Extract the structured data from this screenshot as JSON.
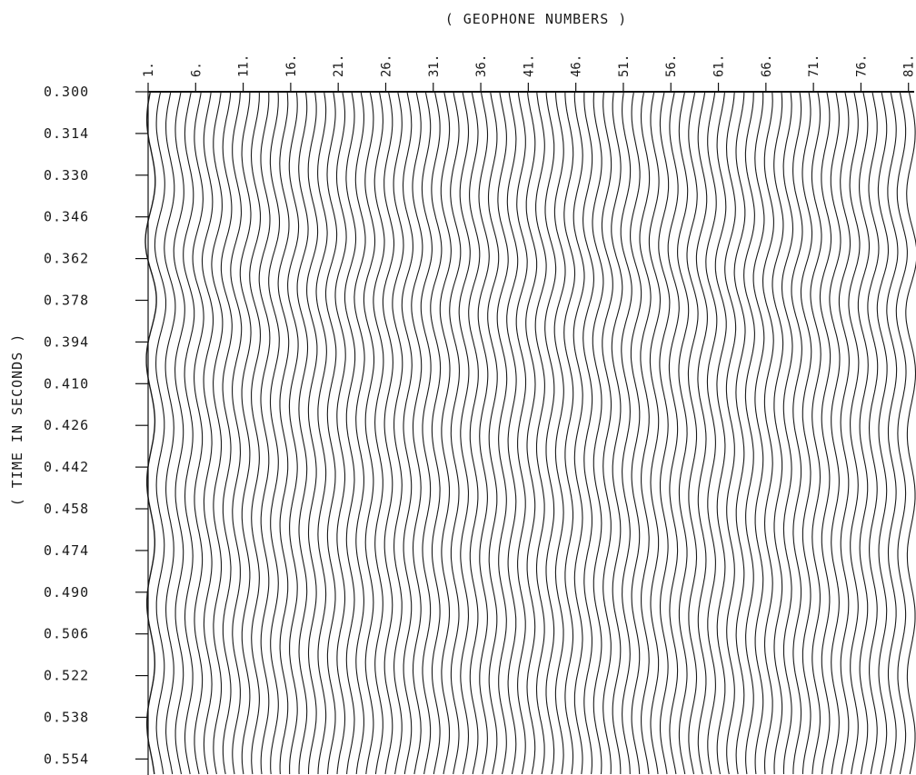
{
  "chart_data": {
    "type": "line",
    "subtype": "seismic-wiggle-traces",
    "xlabel": "( GEOPHONE NUMBERS )",
    "ylabel": "( TIME IN SECONDS )",
    "x_tick_labels": [
      "1.",
      "6.",
      "11.",
      "16.",
      "21.",
      "26.",
      "31.",
      "36.",
      "41.",
      "46.",
      "51.",
      "56.",
      "61.",
      "66.",
      "71.",
      "76.",
      "81."
    ],
    "y_tick_labels": [
      "0.300",
      "0.314",
      "0.330",
      "0.346",
      "0.362",
      "0.378",
      "0.394",
      "0.410",
      "0.426",
      "0.442",
      "0.458",
      "0.474",
      "0.490",
      "0.506",
      "0.522",
      "0.538",
      "0.554"
    ],
    "geophone_range": [
      1,
      81
    ],
    "time_range": [
      0.3,
      0.554
    ],
    "trace_count": 81,
    "dominant_period_s": 0.046,
    "y_direction": "time increases downward",
    "grid": false,
    "legend": "none",
    "colors": {
      "trace": "#1a1a1a",
      "axis": "#111111",
      "background": "#ffffff"
    }
  }
}
